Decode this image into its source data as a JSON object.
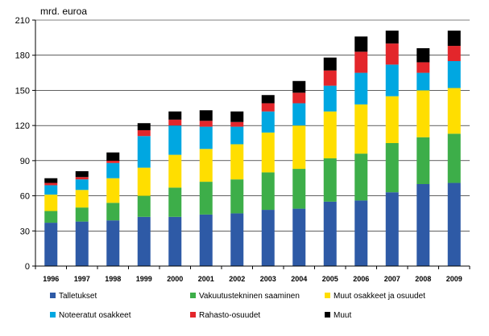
{
  "chart_data": {
    "type": "bar",
    "stacked": true,
    "title": "",
    "ylabel": "mrd. euroa",
    "xlabel": "",
    "ylim": [
      0,
      210
    ],
    "yticks": [
      0,
      30,
      60,
      90,
      120,
      150,
      180,
      210
    ],
    "grid": true,
    "legend_position": "bottom",
    "categories": [
      "1996",
      "1997",
      "1998",
      "1999",
      "2000",
      "2001",
      "2002",
      "2003",
      "2004",
      "2005",
      "2006",
      "2007",
      "2008",
      "2009"
    ],
    "series": [
      {
        "name": "Talletukset",
        "color": "#2e5aa6",
        "values": [
          37,
          38,
          39,
          42,
          42,
          44,
          45,
          48,
          49,
          55,
          56,
          63,
          70,
          71
        ]
      },
      {
        "name": "Vakuutustekninen saaminen",
        "color": "#3dae49",
        "values": [
          10,
          12,
          15,
          18,
          25,
          28,
          29,
          32,
          34,
          37,
          40,
          42,
          40,
          42
        ]
      },
      {
        "name": "Muut osakkeet ja osuudet",
        "color": "#ffde00",
        "values": [
          14,
          15,
          21,
          24,
          28,
          28,
          30,
          34,
          37,
          40,
          42,
          40,
          40,
          39
        ]
      },
      {
        "name": "Noteeratut osakkeet",
        "color": "#00a7e1",
        "values": [
          8,
          9,
          13,
          27,
          25,
          19,
          15,
          18,
          19,
          22,
          27,
          27,
          15,
          23
        ]
      },
      {
        "name": "Rahasto-osuudet",
        "color": "#e3262b",
        "values": [
          2,
          2,
          2,
          5,
          5,
          5,
          4,
          7,
          9,
          13,
          18,
          18,
          9,
          13
        ]
      },
      {
        "name": "Muut",
        "color": "#000000",
        "values": [
          4,
          5,
          7,
          6,
          7,
          9,
          9,
          7,
          10,
          11,
          13,
          11,
          12,
          13
        ]
      }
    ]
  }
}
